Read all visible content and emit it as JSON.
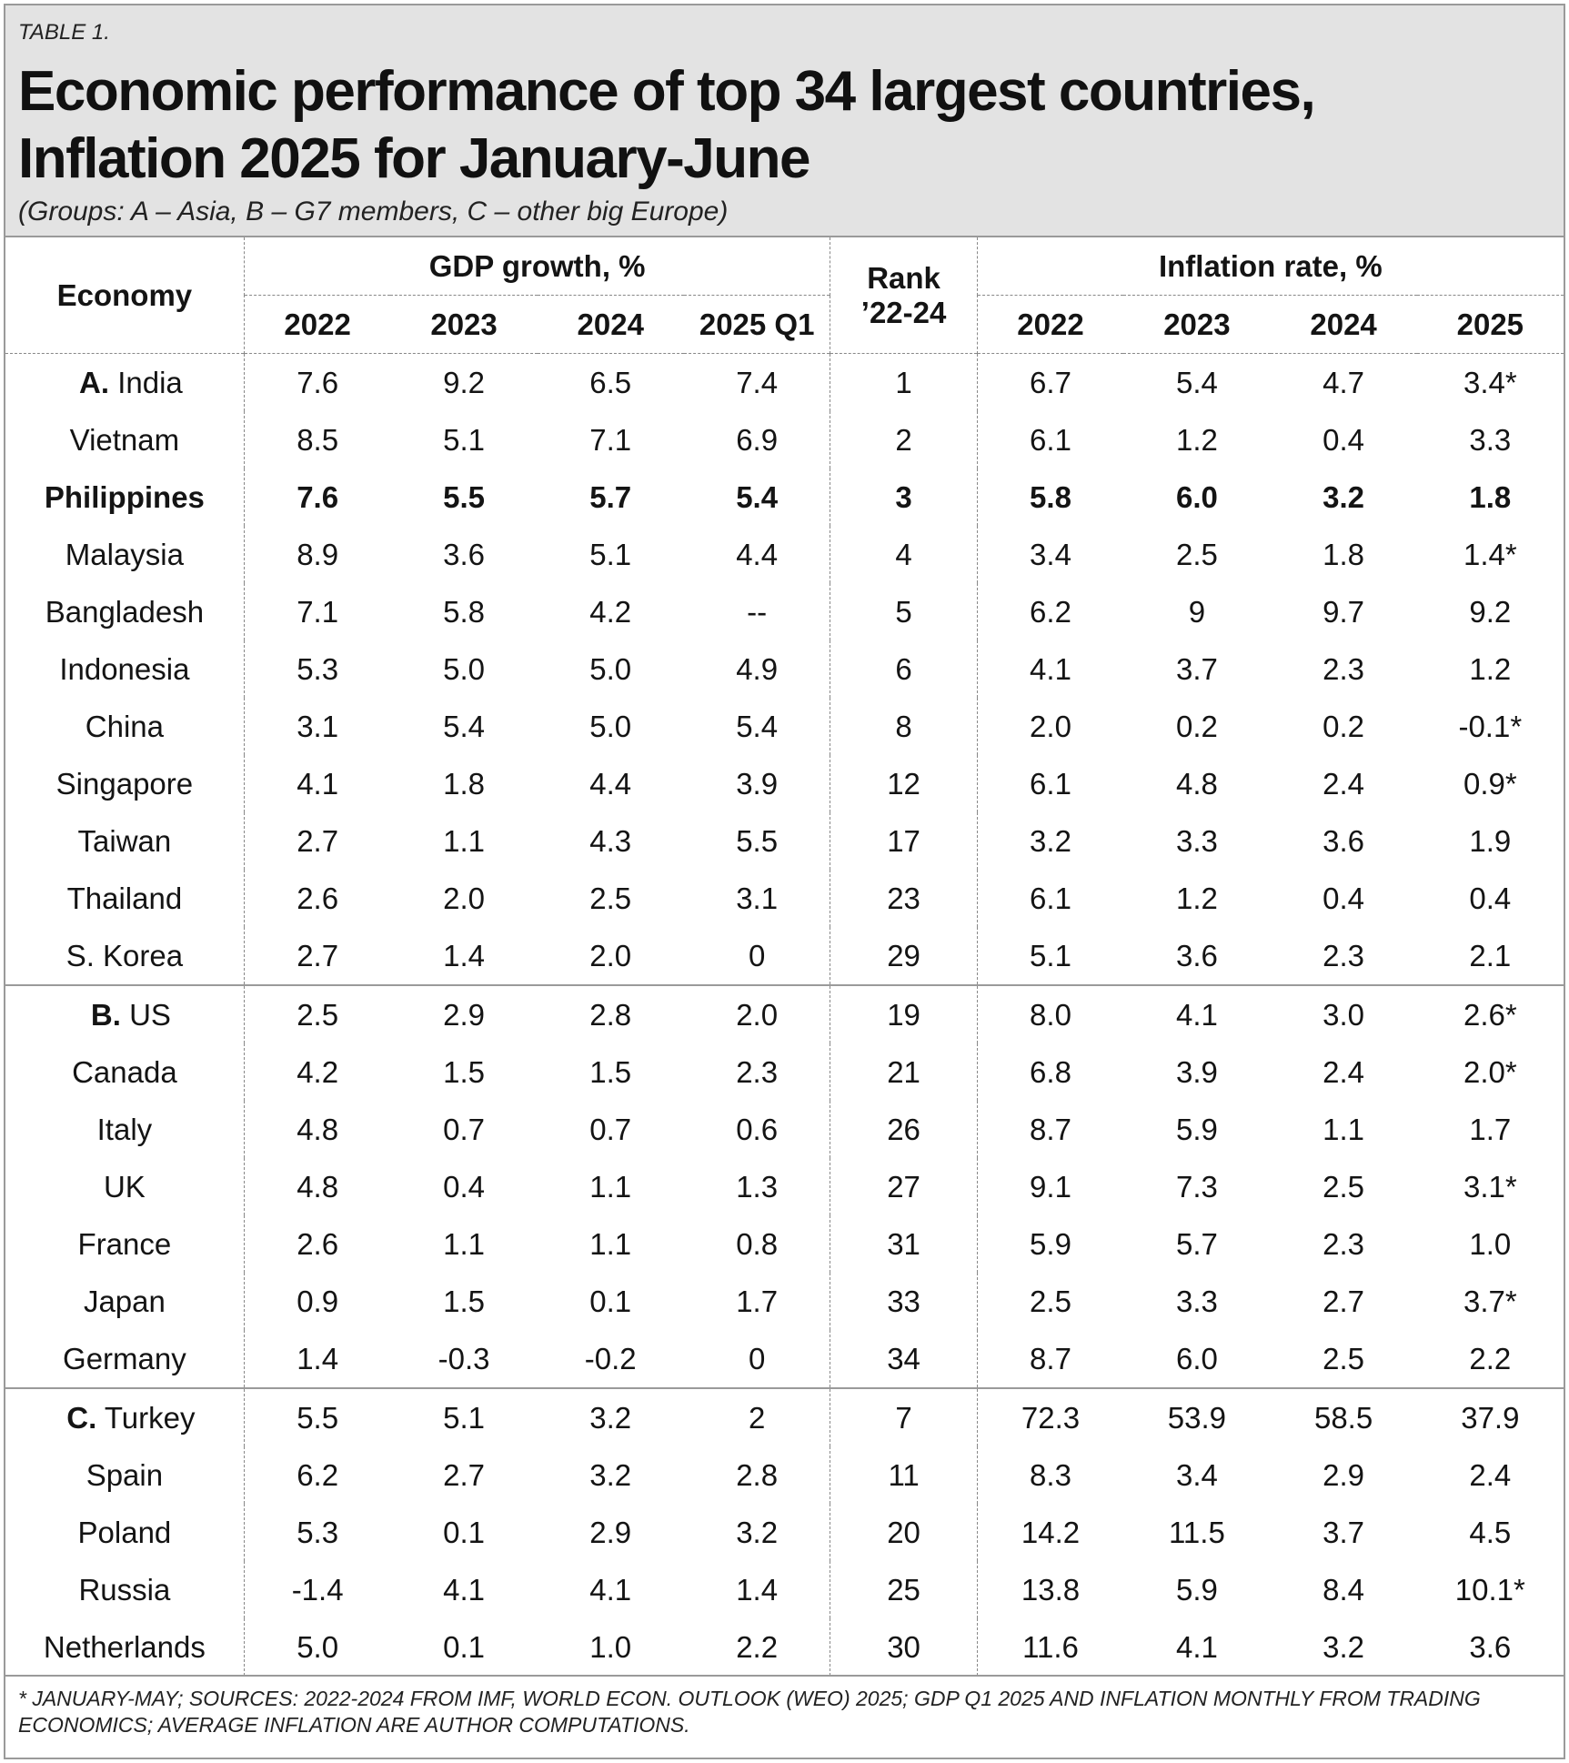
{
  "header": {
    "tag": "TABLE 1.",
    "title_line1": "Economic performance of top 34 largest countries,",
    "title_line2": "Inflation 2025 for January-June",
    "subtitle": "(Groups: A – Asia, B – G7 members, C – other big Europe)"
  },
  "columns": {
    "economy": "Economy",
    "gdp_group": "GDP growth, %",
    "rank_line1": "Rank",
    "rank_line2": "’22-24",
    "inflation_group": "Inflation rate, %",
    "gdp_years": [
      "2022",
      "2023",
      "2024",
      "2025 Q1"
    ],
    "inflation_years": [
      "2022",
      "2023",
      "2024",
      "2025"
    ]
  },
  "groups": [
    {
      "label": "A.",
      "rows": [
        {
          "country": "India",
          "gdp": [
            "7.6",
            "9.2",
            "6.5",
            "7.4"
          ],
          "rank": "1",
          "inflation": [
            "6.7",
            "5.4",
            "4.7",
            "3.4*"
          ]
        },
        {
          "country": "Vietnam",
          "gdp": [
            "8.5",
            "5.1",
            "7.1",
            "6.9"
          ],
          "rank": "2",
          "inflation": [
            "6.1",
            "1.2",
            "0.4",
            "3.3"
          ]
        },
        {
          "country": "Philippines",
          "bold": true,
          "gdp": [
            "7.6",
            "5.5",
            "5.7",
            "5.4"
          ],
          "rank": "3",
          "inflation": [
            "5.8",
            "6.0",
            "3.2",
            "1.8"
          ]
        },
        {
          "country": "Malaysia",
          "gdp": [
            "8.9",
            "3.6",
            "5.1",
            "4.4"
          ],
          "rank": "4",
          "inflation": [
            "3.4",
            "2.5",
            "1.8",
            "1.4*"
          ]
        },
        {
          "country": "Bangladesh",
          "gdp": [
            "7.1",
            "5.8",
            "4.2",
            "--"
          ],
          "rank": "5",
          "inflation": [
            "6.2",
            "9",
            "9.7",
            "9.2"
          ]
        },
        {
          "country": "Indonesia",
          "gdp": [
            "5.3",
            "5.0",
            "5.0",
            "4.9"
          ],
          "rank": "6",
          "inflation": [
            "4.1",
            "3.7",
            "2.3",
            "1.2"
          ]
        },
        {
          "country": "China",
          "gdp": [
            "3.1",
            "5.4",
            "5.0",
            "5.4"
          ],
          "rank": "8",
          "inflation": [
            "2.0",
            "0.2",
            "0.2",
            "-0.1*"
          ]
        },
        {
          "country": "Singapore",
          "gdp": [
            "4.1",
            "1.8",
            "4.4",
            "3.9"
          ],
          "rank": "12",
          "inflation": [
            "6.1",
            "4.8",
            "2.4",
            "0.9*"
          ]
        },
        {
          "country": "Taiwan",
          "gdp": [
            "2.7",
            "1.1",
            "4.3",
            "5.5"
          ],
          "rank": "17",
          "inflation": [
            "3.2",
            "3.3",
            "3.6",
            "1.9"
          ]
        },
        {
          "country": "Thailand",
          "gdp": [
            "2.6",
            "2.0",
            "2.5",
            "3.1"
          ],
          "rank": "23",
          "inflation": [
            "6.1",
            "1.2",
            "0.4",
            "0.4"
          ]
        },
        {
          "country": "S. Korea",
          "gdp": [
            "2.7",
            "1.4",
            "2.0",
            "0"
          ],
          "rank": "29",
          "inflation": [
            "5.1",
            "3.6",
            "2.3",
            "2.1"
          ]
        }
      ]
    },
    {
      "label": "B.",
      "rows": [
        {
          "country": "US",
          "gdp": [
            "2.5",
            "2.9",
            "2.8",
            "2.0"
          ],
          "rank": "19",
          "inflation": [
            "8.0",
            "4.1",
            "3.0",
            "2.6*"
          ]
        },
        {
          "country": "Canada",
          "gdp": [
            "4.2",
            "1.5",
            "1.5",
            "2.3"
          ],
          "rank": "21",
          "inflation": [
            "6.8",
            "3.9",
            "2.4",
            "2.0*"
          ]
        },
        {
          "country": "Italy",
          "gdp": [
            "4.8",
            "0.7",
            "0.7",
            "0.6"
          ],
          "rank": "26",
          "inflation": [
            "8.7",
            "5.9",
            "1.1",
            "1.7"
          ]
        },
        {
          "country": "UK",
          "gdp": [
            "4.8",
            "0.4",
            "1.1",
            "1.3"
          ],
          "rank": "27",
          "inflation": [
            "9.1",
            "7.3",
            "2.5",
            "3.1*"
          ]
        },
        {
          "country": "France",
          "gdp": [
            "2.6",
            "1.1",
            "1.1",
            "0.8"
          ],
          "rank": "31",
          "inflation": [
            "5.9",
            "5.7",
            "2.3",
            "1.0"
          ]
        },
        {
          "country": "Japan",
          "gdp": [
            "0.9",
            "1.5",
            "0.1",
            "1.7"
          ],
          "rank": "33",
          "inflation": [
            "2.5",
            "3.3",
            "2.7",
            "3.7*"
          ]
        },
        {
          "country": "Germany",
          "gdp": [
            "1.4",
            "-0.3",
            "-0.2",
            "0"
          ],
          "rank": "34",
          "inflation": [
            "8.7",
            "6.0",
            "2.5",
            "2.2"
          ]
        }
      ]
    },
    {
      "label": "C.",
      "rows": [
        {
          "country": "Turkey",
          "gdp": [
            "5.5",
            "5.1",
            "3.2",
            "2"
          ],
          "rank": "7",
          "inflation": [
            "72.3",
            "53.9",
            "58.5",
            "37.9"
          ]
        },
        {
          "country": "Spain",
          "gdp": [
            "6.2",
            "2.7",
            "3.2",
            "2.8"
          ],
          "rank": "11",
          "inflation": [
            "8.3",
            "3.4",
            "2.9",
            "2.4"
          ]
        },
        {
          "country": "Poland",
          "gdp": [
            "5.3",
            "0.1",
            "2.9",
            "3.2"
          ],
          "rank": "20",
          "inflation": [
            "14.2",
            "11.5",
            "3.7",
            "4.5"
          ]
        },
        {
          "country": "Russia",
          "gdp": [
            "-1.4",
            "4.1",
            "4.1",
            "1.4"
          ],
          "rank": "25",
          "inflation": [
            "13.8",
            "5.9",
            "8.4",
            "10.1*"
          ]
        },
        {
          "country": "Netherlands",
          "gdp": [
            "5.0",
            "0.1",
            "1.0",
            "2.2"
          ],
          "rank": "30",
          "inflation": [
            "11.6",
            "4.1",
            "3.2",
            "3.6"
          ]
        }
      ]
    }
  ],
  "footnote": "* January-May; Sources: 2022-2024 from IMF, World Econ. Outlook (WEO) 2025; GDP Q1 2025 and inflation monthly from Trading Economics; Average inflation are author computations."
}
